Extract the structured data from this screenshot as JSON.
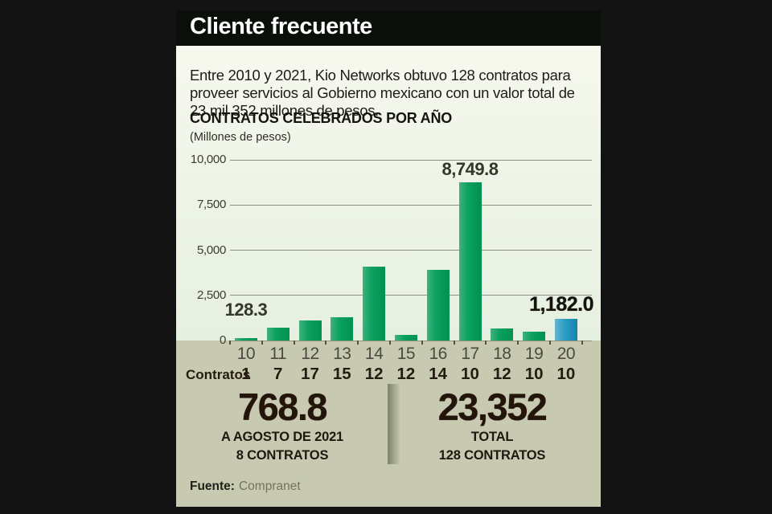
{
  "header": {
    "title": "Cliente frecuente"
  },
  "intro": {
    "text": "Entre 2010 y 2021, Kio Networks obtuvo 128 contratos para proveer servicios al Gobierno mexicano con un valor total de 23 mil 352 millones de pesos."
  },
  "chart_data": {
    "type": "bar",
    "title": "CONTRATOS CELEBRADOS POR AÑO",
    "unit_label": "(Millones de pesos)",
    "categories": [
      "10",
      "11",
      "12",
      "13",
      "14",
      "15",
      "16",
      "17",
      "18",
      "19",
      "20"
    ],
    "values": [
      128.3,
      710,
      1100,
      1280,
      4100,
      320,
      3930,
      8749.8,
      650,
      510,
      1182
    ],
    "point_labels": [
      "128.3",
      null,
      null,
      null,
      null,
      null,
      null,
      "8,749.8",
      null,
      null,
      "1,182.0"
    ],
    "highlight_index": 10,
    "ylim": [
      0,
      10000
    ],
    "yticks": [
      {
        "value": 10000,
        "label": "10,000"
      },
      {
        "value": 7500,
        "label": "7,500"
      },
      {
        "value": 5000,
        "label": "5,000"
      },
      {
        "value": 2500,
        "label": "2,500"
      },
      {
        "value": 0,
        "label": "0"
      }
    ],
    "grid": true,
    "legend": "none",
    "bar_color": "#0aa05f",
    "highlight_color": "#2a9ec4",
    "contracts_row": {
      "label": "Contratos",
      "values": [
        "1",
        "7",
        "17",
        "15",
        "12",
        "12",
        "14",
        "10",
        "12",
        "10",
        "10"
      ]
    }
  },
  "summary": {
    "left": {
      "value": "768.8",
      "caption_line1": "A AGOSTO DE 2021",
      "caption_line2": "8 CONTRATOS"
    },
    "right": {
      "value": "23,352",
      "caption_line1": "TOTAL",
      "caption_line2": "128 CONTRATOS"
    }
  },
  "source": {
    "label": "Fuente:",
    "value": "Compranet"
  },
  "colors": {
    "background": "#131313",
    "title_bar": "#0a0f0a",
    "panel_light": "#eef4e7",
    "panel_beige": "#c7cab0",
    "accent_green": "#0aa05f",
    "accent_blue": "#2a9ec4",
    "gridline": "#90927f"
  }
}
